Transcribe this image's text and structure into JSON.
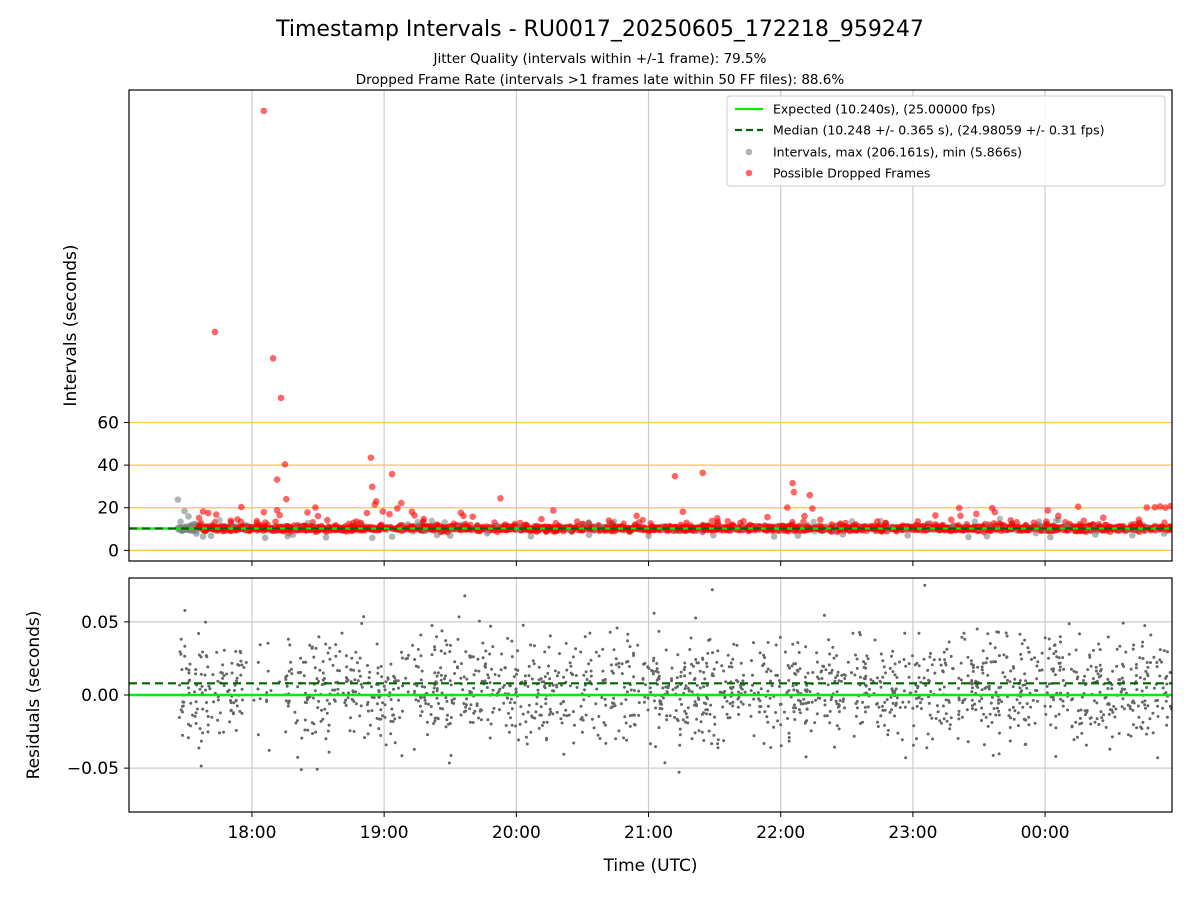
{
  "figure": {
    "title": "Timestamp Intervals - RU0017_20250605_172218_959247",
    "subtitle_1": "Jitter Quality (intervals within +/-1 frame): 79.5%",
    "subtitle_2": "Dropped Frame Rate (intervals >1 frames late within 50 FF files): 88.6%"
  },
  "colors": {
    "expected": "#00ee00",
    "median": "#006400",
    "intervals": "#808080",
    "dropped": "#ff0000",
    "reference_lines": "#ffc445",
    "grid": "#cccccc",
    "residuals": "#666666"
  },
  "chart_data": [
    {
      "type": "scatter",
      "xlabel": "",
      "ylabel": "Intervals (seconds)",
      "x_unit": "hours since 00:00 on the first day (UTC); values above 24 are after midnight",
      "xlim": [
        17.07,
        24.96
      ],
      "ylim": [
        -5,
        216
      ],
      "grid": "x",
      "yticks": [
        0,
        20,
        40,
        60
      ],
      "ytick_labels": [
        "0",
        "20",
        "40",
        "60"
      ],
      "horizontal_reference_lines": [
        0,
        20,
        40,
        60
      ],
      "legend": {
        "placement": "top-right",
        "entries": [
          "Expected (10.240s), (25.00000 fps)",
          "Median (10.248 +/- 0.365 s), (24.98059 +/- 0.31 fps)",
          "Intervals, max (206.161s), min (5.866s)",
          "Possible Dropped Frames"
        ]
      },
      "expected_value": 10.24,
      "median_value": 10.248,
      "series": [
        {
          "name": "Possible Dropped Frames",
          "points": [
            [
              18.09,
              206.2
            ],
            [
              17.72,
              102.5
            ],
            [
              18.16,
              90.1
            ],
            [
              18.22,
              71.5
            ],
            [
              18.25,
              40.3
            ],
            [
              18.26,
              24.0
            ],
            [
              18.19,
              18.8
            ],
            [
              18.21,
              16.5
            ],
            [
              18.19,
              33.2
            ],
            [
              18.09,
              17.9
            ],
            [
              17.92,
              20.3
            ],
            [
              17.63,
              18.2
            ],
            [
              17.67,
              17.5
            ],
            [
              17.73,
              16.8
            ],
            [
              17.6,
              15.2
            ],
            [
              17.89,
              14.5
            ],
            [
              17.84,
              13.9
            ],
            [
              18.42,
              17.8
            ],
            [
              18.48,
              20.1
            ],
            [
              18.5,
              16.1
            ],
            [
              18.57,
              14.2
            ],
            [
              18.79,
              13.5
            ],
            [
              18.87,
              17.5
            ],
            [
              18.9,
              43.5
            ],
            [
              18.91,
              29.8
            ],
            [
              18.93,
              21.5
            ],
            [
              18.94,
              23.0
            ],
            [
              18.99,
              18.2
            ],
            [
              19.04,
              17.0
            ],
            [
              19.06,
              35.8
            ],
            [
              19.1,
              19.7
            ],
            [
              19.13,
              22.2
            ],
            [
              19.21,
              18.1
            ],
            [
              19.23,
              16.4
            ],
            [
              19.3,
              14.7
            ],
            [
              19.58,
              17.6
            ],
            [
              19.6,
              16.2
            ],
            [
              19.67,
              15.8
            ],
            [
              19.88,
              24.4
            ],
            [
              20.19,
              14.6
            ],
            [
              20.28,
              18.7
            ],
            [
              20.7,
              14.0
            ],
            [
              20.91,
              16.2
            ],
            [
              21.2,
              34.8
            ],
            [
              21.26,
              18.1
            ],
            [
              21.41,
              36.4
            ],
            [
              21.48,
              13.8
            ],
            [
              21.52,
              15.1
            ],
            [
              21.6,
              13.6
            ],
            [
              21.9,
              15.6
            ],
            [
              22.05,
              20.1
            ],
            [
              22.09,
              31.5
            ],
            [
              22.1,
              27.3
            ],
            [
              22.18,
              16.1
            ],
            [
              22.22,
              25.9
            ],
            [
              22.24,
              19.6
            ],
            [
              22.3,
              14.4
            ],
            [
              22.45,
              12.5
            ],
            [
              22.73,
              13.5
            ],
            [
              23.17,
              16.4
            ],
            [
              23.29,
              14.4
            ],
            [
              23.35,
              19.9
            ],
            [
              23.36,
              16.2
            ],
            [
              23.48,
              17.1
            ],
            [
              23.6,
              19.8
            ],
            [
              23.62,
              17.9
            ],
            [
              23.74,
              14.1
            ],
            [
              24.01,
              13.5
            ],
            [
              24.02,
              18.7
            ],
            [
              24.1,
              16.2
            ],
            [
              24.25,
              20.5
            ],
            [
              24.44,
              15.3
            ],
            [
              24.71,
              14.4
            ],
            [
              24.77,
              20.1
            ],
            [
              24.83,
              20.2
            ],
            [
              24.87,
              20.6
            ],
            [
              24.91,
              20.0
            ],
            [
              24.95,
              20.8
            ]
          ]
        },
        {
          "name": "Intervals, max (206.161s), min (5.866s)",
          "points": [
            [
              17.44,
              23.8
            ],
            [
              17.46,
              13.4
            ],
            [
              17.49,
              18.4
            ],
            [
              17.52,
              15.9
            ],
            [
              17.55,
              11.6
            ],
            [
              17.47,
              9.2
            ],
            [
              17.58,
              7.8
            ],
            [
              17.63,
              6.5
            ],
            [
              17.69,
              6.8
            ],
            [
              18.1,
              5.9
            ],
            [
              18.27,
              6.7
            ],
            [
              18.31,
              7.4
            ],
            [
              18.56,
              6.1
            ],
            [
              18.91,
              5.9
            ],
            [
              19.06,
              6.4
            ],
            [
              19.4,
              7.2
            ],
            [
              19.5,
              6.9
            ],
            [
              19.78,
              8.0
            ],
            [
              20.11,
              6.6
            ],
            [
              20.55,
              7.3
            ],
            [
              21.0,
              6.8
            ],
            [
              21.49,
              7.1
            ],
            [
              21.95,
              6.5
            ],
            [
              22.13,
              6.9
            ],
            [
              22.47,
              7.5
            ],
            [
              22.96,
              7.0
            ],
            [
              23.42,
              6.3
            ],
            [
              23.56,
              6.6
            ],
            [
              23.93,
              8.1
            ],
            [
              24.04,
              6.2
            ],
            [
              24.38,
              7.4
            ],
            [
              24.66,
              7.1
            ],
            [
              24.9,
              7.9
            ]
          ]
        }
      ]
    },
    {
      "type": "scatter",
      "xlabel": "Time (UTC)",
      "ylabel": "Residuals (seconds)",
      "xlim": [
        17.07,
        24.96
      ],
      "ylim": [
        -0.08,
        0.08
      ],
      "grid": "both",
      "yticks": [
        -0.05,
        0.0,
        0.05
      ],
      "ytick_labels": [
        "−0.05",
        "0.00",
        "0.05"
      ],
      "xticks": [
        18,
        19,
        20,
        21,
        22,
        23,
        24
      ],
      "xtick_labels": [
        "18:00",
        "19:00",
        "20:00",
        "21:00",
        "22:00",
        "23:00",
        "00:00"
      ],
      "expected_value": 0.0,
      "median_value": 0.008,
      "residual_std": 0.0185,
      "time_span": [
        17.45,
        24.96
      ]
    }
  ]
}
